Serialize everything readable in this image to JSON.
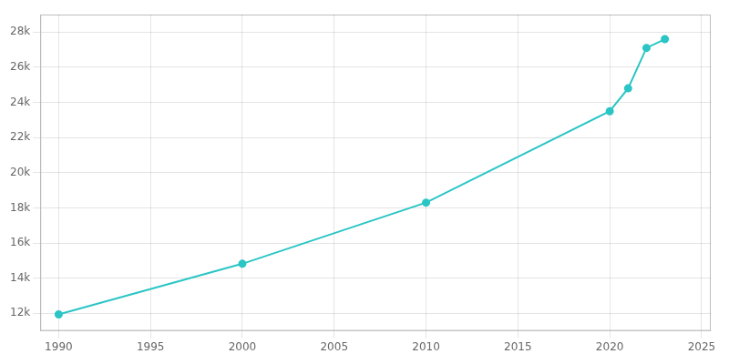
{
  "chart_data": {
    "type": "line",
    "x": [
      1990,
      2000,
      2010,
      2020,
      2021,
      2022,
      2023
    ],
    "values": [
      11939,
      14820,
      18300,
      23500,
      24800,
      27100,
      27600
    ],
    "color": "#2bc5c5",
    "marker": "circle",
    "xlim": [
      1989,
      2025.5
    ],
    "ylim": [
      11000,
      29000
    ],
    "xticks": [
      1990,
      1995,
      2000,
      2005,
      2010,
      2015,
      2020,
      2025
    ],
    "yticks": [
      {
        "value": 12000,
        "label": "12k"
      },
      {
        "value": 14000,
        "label": "14k"
      },
      {
        "value": 16000,
        "label": "16k"
      },
      {
        "value": 18000,
        "label": "18k"
      },
      {
        "value": 20000,
        "label": "20k"
      },
      {
        "value": 22000,
        "label": "22k"
      },
      {
        "value": 24000,
        "label": "24k"
      },
      {
        "value": 26000,
        "label": "26k"
      },
      {
        "value": 28000,
        "label": "28k"
      }
    ],
    "grid": true
  }
}
